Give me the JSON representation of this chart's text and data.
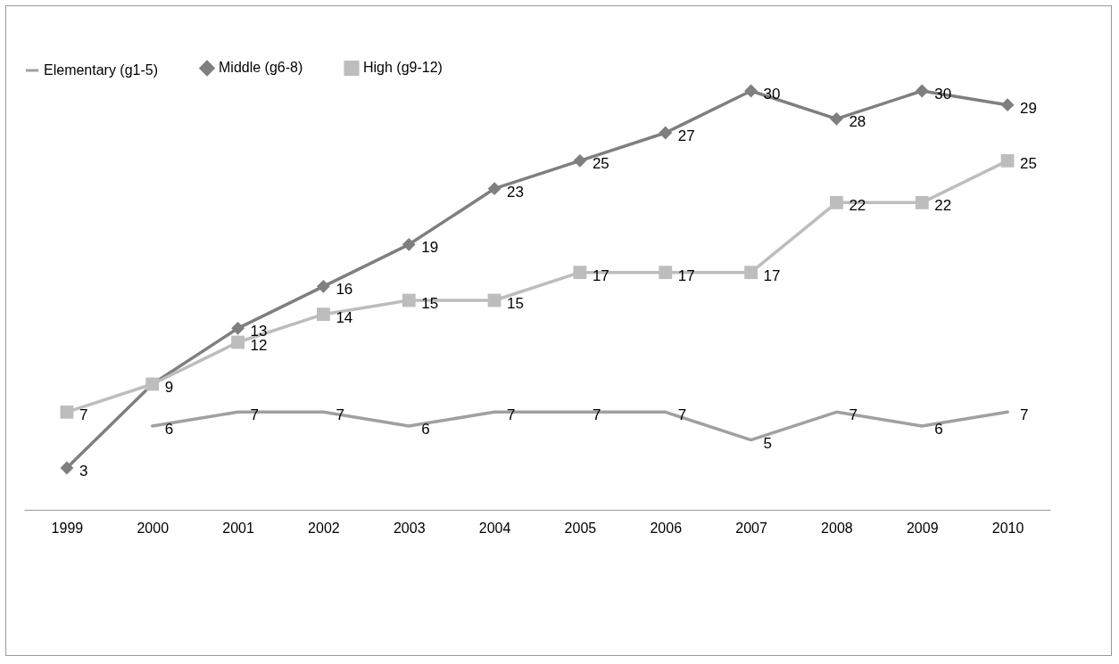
{
  "chart_data": {
    "type": "line",
    "categories": [
      "1999",
      "2000",
      "2001",
      "2002",
      "2003",
      "2004",
      "2005",
      "2006",
      "2007",
      "2008",
      "2009",
      "2010"
    ],
    "series": [
      {
        "name": "Elementary (g1-5)",
        "color": "#a0a0a0",
        "marker": "none",
        "values": [
          null,
          6,
          7,
          7,
          6,
          7,
          7,
          7,
          5,
          7,
          6,
          7
        ],
        "value_labels": [
          null,
          "6",
          "7",
          "7",
          "6",
          "7",
          "7",
          "7",
          "5",
          "7",
          "6",
          "7"
        ]
      },
      {
        "name": "Middle (g6-8)",
        "color": "#7f7f7f",
        "marker": "diamond",
        "values": [
          3,
          9,
          13,
          16,
          19,
          23,
          25,
          27,
          30,
          28,
          30,
          29
        ],
        "value_labels": [
          "3",
          "9",
          "13",
          "16",
          "19",
          "23",
          "25",
          "27",
          "30",
          "28",
          "30",
          "29"
        ]
      },
      {
        "name": "High (g9-12)",
        "color": "#bdbdbd",
        "marker": "square",
        "values": [
          7,
          9,
          12,
          14,
          15,
          15,
          17,
          17,
          17,
          22,
          22,
          25
        ],
        "value_labels": [
          "7",
          null,
          "12",
          "14",
          "15",
          "15",
          "17",
          "17",
          "17",
          "22",
          "22",
          "25"
        ]
      }
    ],
    "legend": "top"
  }
}
